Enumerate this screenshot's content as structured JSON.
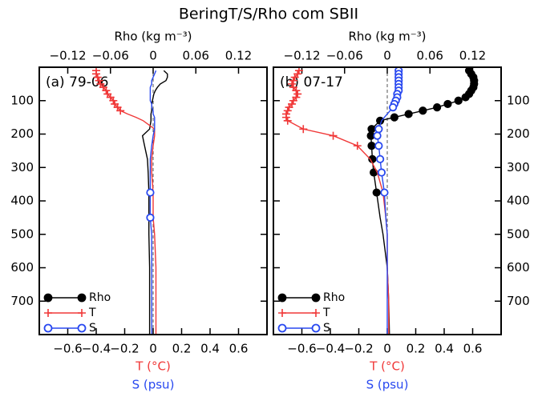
{
  "title": "BeringT/S/Rho com SBII",
  "chart_data": [
    {
      "type": "line",
      "label": "(a) 79-06",
      "ytick_side": "left",
      "legend": "lower left",
      "y": [
        10,
        20,
        30,
        40,
        50,
        60,
        70,
        80,
        90,
        100,
        110,
        120,
        130,
        140,
        150,
        160,
        185,
        205,
        235,
        275,
        315,
        375,
        450,
        500,
        600,
        700,
        800
      ],
      "ylim": [
        800,
        0
      ],
      "yticks": [
        100,
        200,
        300,
        400,
        500,
        600,
        700
      ],
      "xlim": [
        -0.8,
        0.8
      ],
      "xticks": [
        {
          "value": -0.6,
          "label": "−0.6"
        },
        {
          "value": -0.4,
          "label": "−0.4"
        },
        {
          "value": -0.2,
          "label": "−0.2"
        },
        0,
        0.2,
        0.4,
        0.6
      ],
      "x2lim": [
        -0.16,
        0.16
      ],
      "x2ticks": [
        {
          "value": -0.12,
          "label": "−0.12"
        },
        {
          "value": -0.06,
          "label": "−0.06"
        },
        0,
        0.06,
        0.12
      ],
      "x2label": "Rho (kg m⁻³)",
      "xlabels": [
        {
          "text": "T (°C)",
          "color": "#f03838"
        },
        {
          "text": "S (psu)",
          "color": "#2848f0"
        }
      ],
      "series": [
        {
          "name": "Rho",
          "color": "#000000",
          "axis": "x2",
          "marker": "filled-circle",
          "values": [
            0.015,
            0.02,
            0.02,
            0.018,
            0.01,
            0.006,
            0.003,
            0.001,
            0.0,
            -0.001,
            -0.002,
            -0.002,
            -0.002,
            -0.003,
            -0.003,
            -0.003,
            -0.005,
            -0.015,
            -0.012,
            -0.008,
            -0.007,
            -0.006,
            -0.006,
            -0.006,
            -0.005,
            -0.005,
            -0.005
          ],
          "marker_values": [
            null,
            null,
            null,
            null,
            null,
            null,
            null,
            null,
            null,
            null,
            null,
            null,
            null,
            null,
            null,
            null,
            null,
            null,
            null,
            null,
            null,
            null,
            null,
            null,
            null,
            null,
            null
          ]
        },
        {
          "name": "T",
          "color": "#f03838",
          "marker": "plus",
          "values": [
            -0.4,
            -0.4,
            -0.39,
            -0.38,
            -0.37,
            -0.35,
            -0.33,
            -0.32,
            -0.3,
            -0.28,
            -0.27,
            -0.25,
            -0.23,
            -0.18,
            -0.12,
            -0.07,
            0.01,
            0.01,
            0.0,
            -0.01,
            -0.01,
            0.0,
            0.0,
            0.01,
            0.02,
            0.02,
            0.02
          ],
          "marker_values": [
            -0.4,
            -0.4,
            -0.39,
            -0.38,
            -0.37,
            -0.35,
            -0.33,
            -0.32,
            -0.3,
            -0.28,
            -0.27,
            -0.25,
            -0.23,
            null,
            null,
            null,
            null,
            null,
            null,
            null,
            null,
            null,
            null,
            null,
            null,
            null,
            null
          ]
        },
        {
          "name": "S",
          "color": "#2848f0",
          "marker": "open-circle",
          "values": [
            0.02,
            0.01,
            0.0,
            -0.01,
            -0.01,
            -0.02,
            -0.02,
            -0.02,
            -0.02,
            -0.02,
            -0.01,
            -0.01,
            0.0,
            0.0,
            0.01,
            0.01,
            0.01,
            0.0,
            -0.01,
            -0.02,
            -0.02,
            -0.02,
            -0.02,
            -0.01,
            -0.01,
            -0.01,
            -0.01
          ],
          "marker_values": [
            null,
            null,
            null,
            null,
            null,
            null,
            null,
            null,
            null,
            null,
            null,
            null,
            null,
            null,
            null,
            null,
            null,
            null,
            null,
            null,
            null,
            -0.02,
            -0.02,
            null,
            null,
            null,
            null
          ]
        }
      ]
    },
    {
      "type": "line",
      "label": "(b) 07-17",
      "ytick_side": "right",
      "legend": "lower left",
      "y": [
        10,
        20,
        30,
        40,
        50,
        60,
        70,
        80,
        90,
        100,
        110,
        120,
        130,
        140,
        150,
        160,
        185,
        205,
        235,
        275,
        315,
        375,
        450,
        500,
        600,
        700,
        800
      ],
      "ylim": [
        800,
        0
      ],
      "yticks": [
        100,
        200,
        300,
        400,
        500,
        600,
        700
      ],
      "xlim": [
        -0.8,
        0.8
      ],
      "xticks": [
        {
          "value": -0.6,
          "label": "−0.6"
        },
        {
          "value": -0.4,
          "label": "−0.4"
        },
        {
          "value": -0.2,
          "label": "−0.2"
        },
        0,
        0.2,
        0.4,
        0.6
      ],
      "x2lim": [
        -0.16,
        0.16
      ],
      "x2ticks": [
        {
          "value": -0.12,
          "label": "−0.12"
        },
        {
          "value": -0.06,
          "label": "−0.06"
        },
        0,
        0.06,
        0.12
      ],
      "x2label": "Rho (kg m⁻³)",
      "xlabels": [
        {
          "text": "T (°C)",
          "color": "#f03838"
        },
        {
          "text": "S (psu)",
          "color": "#2848f0"
        }
      ],
      "series": [
        {
          "name": "Rho",
          "color": "#000000",
          "axis": "x2",
          "marker": "filled-circle",
          "values": [
            0.115,
            0.118,
            0.121,
            0.122,
            0.122,
            0.121,
            0.118,
            0.115,
            0.11,
            0.1,
            0.085,
            0.07,
            0.05,
            0.03,
            0.01,
            -0.01,
            -0.022,
            -0.023,
            -0.022,
            -0.021,
            -0.019,
            -0.015,
            -0.01,
            -0.006,
            0.0,
            0.002,
            0.003
          ],
          "marker_values": [
            0.115,
            0.118,
            0.121,
            0.122,
            0.122,
            0.121,
            0.118,
            0.115,
            0.11,
            0.1,
            0.085,
            0.07,
            0.05,
            0.03,
            0.01,
            -0.01,
            -0.022,
            -0.023,
            -0.022,
            -0.021,
            -0.019,
            -0.015,
            null,
            null,
            null,
            null,
            null
          ]
        },
        {
          "name": "T",
          "color": "#f03838",
          "marker": "plus",
          "values": [
            -0.62,
            -0.63,
            -0.65,
            -0.66,
            -0.67,
            -0.66,
            -0.64,
            -0.63,
            -0.64,
            -0.66,
            -0.67,
            -0.69,
            -0.7,
            -0.71,
            -0.71,
            -0.7,
            -0.59,
            -0.38,
            -0.21,
            -0.12,
            -0.07,
            -0.03,
            -0.01,
            0.0,
            0.0,
            0.01,
            0.01
          ],
          "marker_values": [
            -0.62,
            -0.63,
            -0.65,
            -0.66,
            -0.67,
            -0.66,
            -0.64,
            -0.63,
            -0.64,
            -0.66,
            -0.67,
            -0.69,
            -0.7,
            -0.71,
            -0.71,
            -0.7,
            -0.59,
            -0.38,
            -0.21,
            null,
            null,
            null,
            null,
            null,
            null,
            null,
            null
          ]
        },
        {
          "name": "S",
          "color": "#2848f0",
          "marker": "open-circle",
          "values": [
            0.08,
            0.08,
            0.08,
            0.08,
            0.08,
            0.08,
            0.08,
            0.07,
            0.07,
            0.06,
            0.05,
            0.04,
            0.02,
            0.0,
            -0.02,
            -0.04,
            -0.06,
            -0.07,
            -0.06,
            -0.05,
            -0.04,
            -0.02,
            -0.01,
            0.0,
            0.0,
            0.0,
            0.0
          ],
          "marker_values": [
            0.08,
            0.08,
            0.08,
            0.08,
            0.08,
            0.08,
            0.08,
            0.07,
            0.07,
            0.06,
            0.05,
            0.04,
            null,
            null,
            null,
            null,
            -0.06,
            -0.07,
            -0.06,
            -0.05,
            -0.04,
            -0.02,
            null,
            null,
            null,
            null,
            null
          ]
        }
      ]
    }
  ]
}
